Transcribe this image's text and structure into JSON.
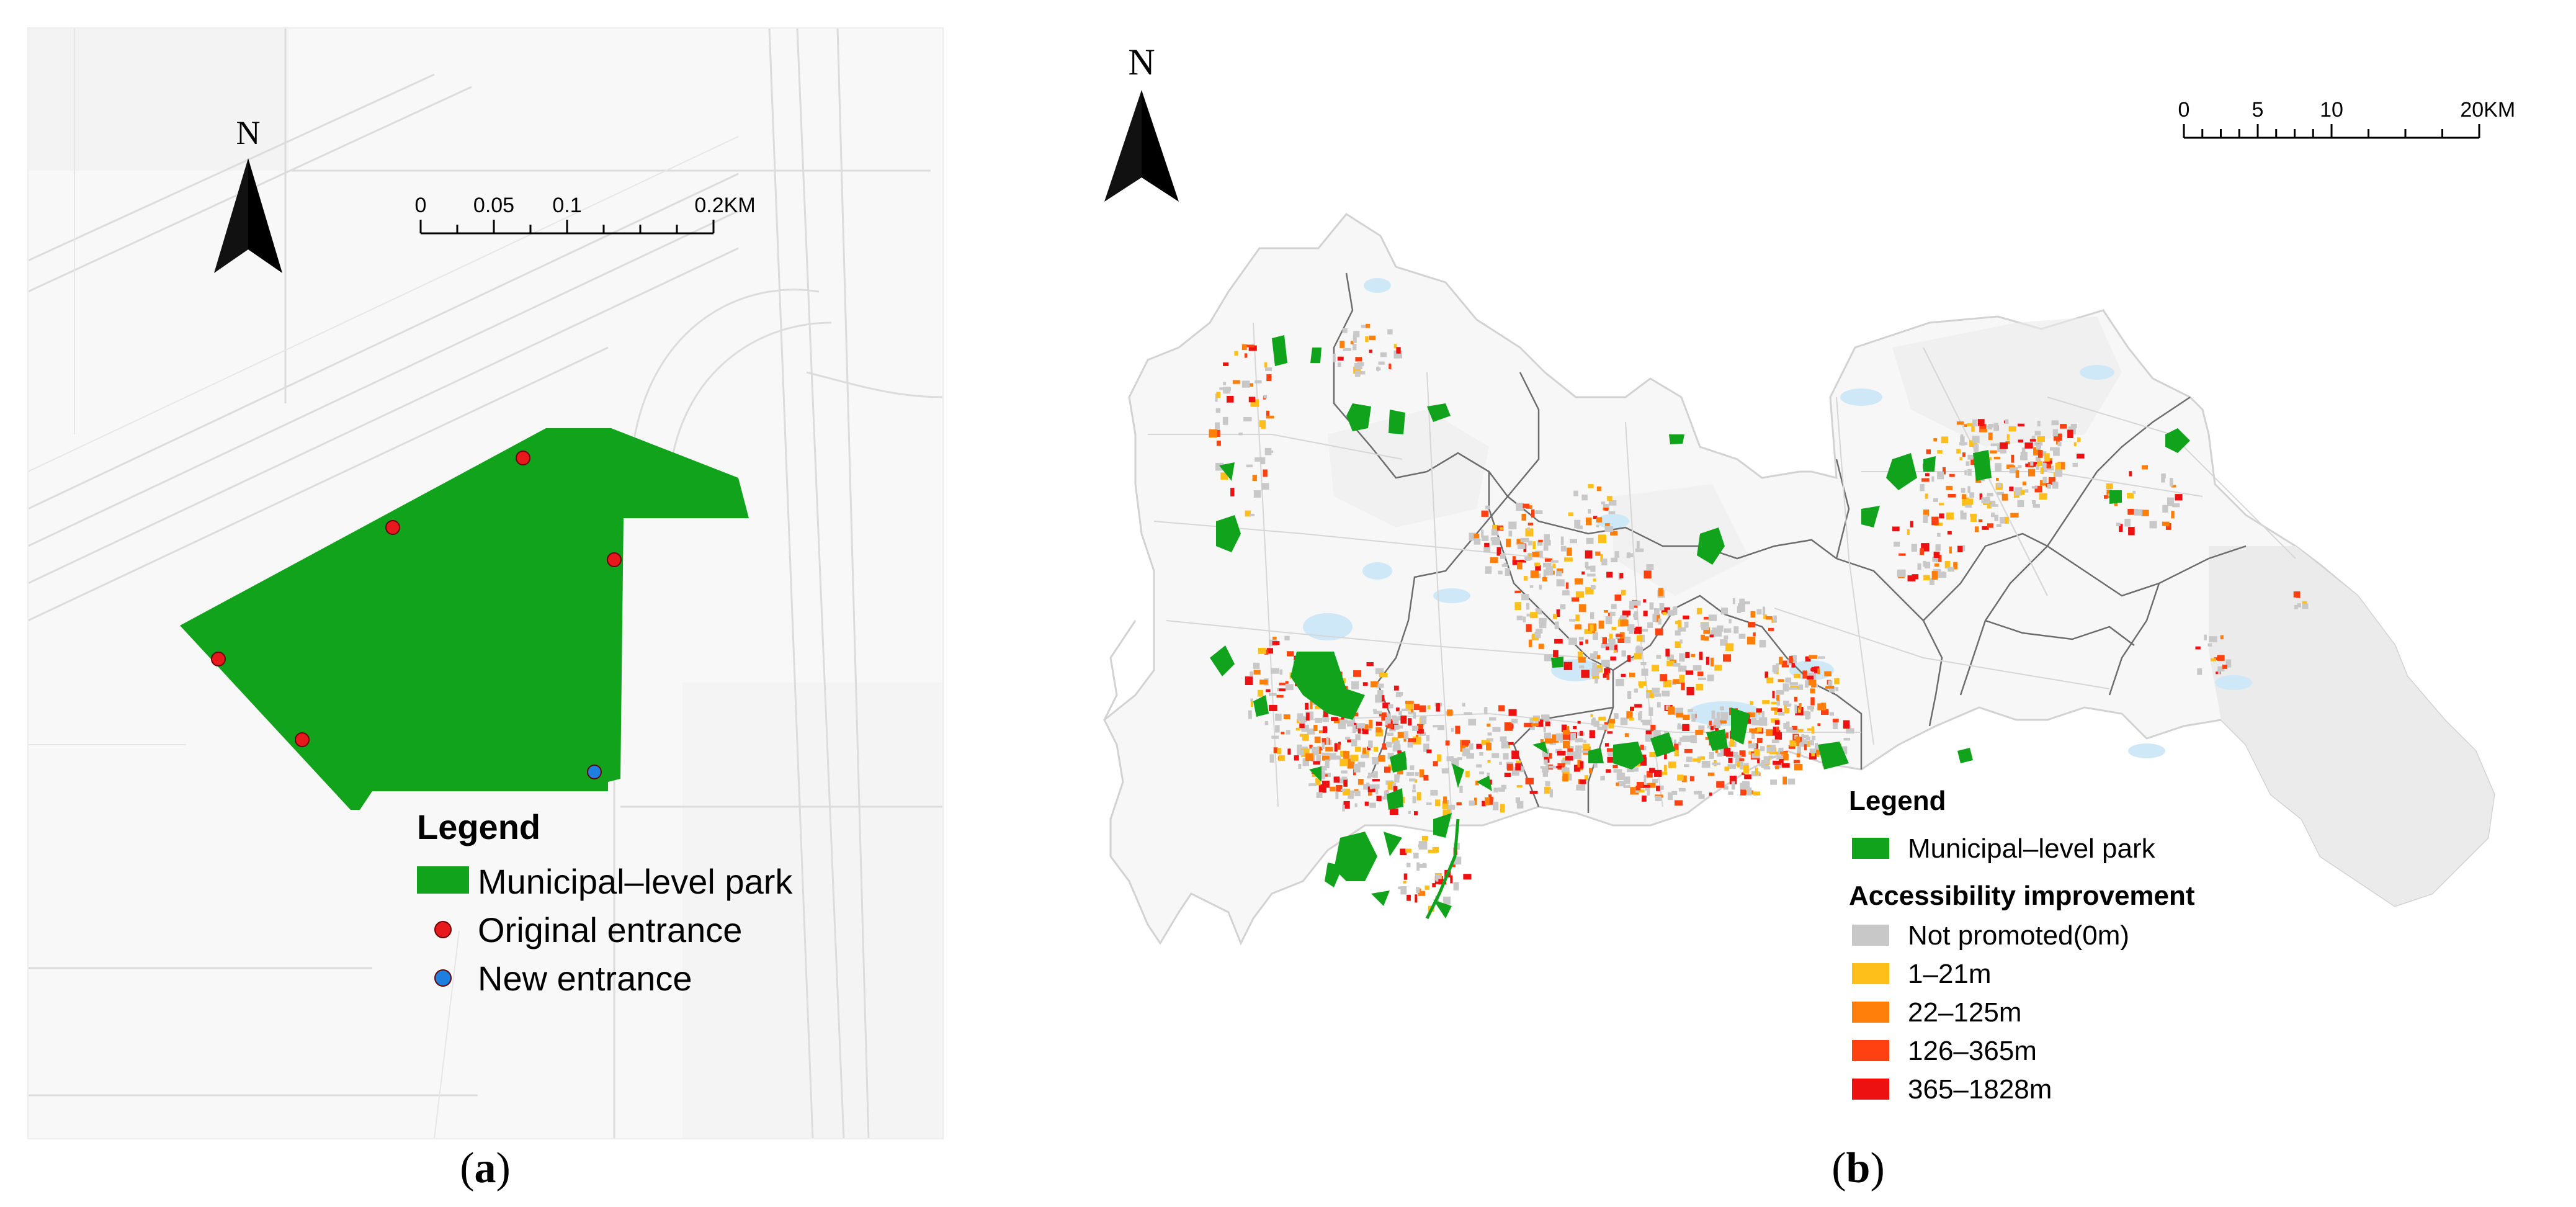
{
  "panel_a": {
    "north_label": "N",
    "scale_bar": {
      "ticks": [
        "0",
        "0.05",
        "0.1",
        "0.2KM"
      ]
    },
    "legend": {
      "title": "Legend",
      "items": [
        {
          "label": "Municipal–level park",
          "symbol": "rect",
          "color": "#11a31b"
        },
        {
          "label": "Original entrance",
          "symbol": "circle",
          "color": "#e8191c"
        },
        {
          "label": "New entrance",
          "symbol": "circle",
          "color": "#1f7fe0"
        }
      ]
    },
    "caption": {
      "open": "(",
      "letter": "a",
      "close": ")"
    }
  },
  "panel_b": {
    "north_label": "N",
    "scale_bar": {
      "ticks": [
        "0",
        "5",
        "10",
        "20KM"
      ]
    },
    "legend": {
      "title": "Legend",
      "park_item": {
        "label": "Municipal–level park",
        "color": "#11a31b"
      },
      "subtitle": "Accessibility improvement",
      "classes": [
        {
          "label": "Not promoted(0m)",
          "color": "#c8c8c8"
        },
        {
          "label": "1–21m",
          "color": "#ffbf1a"
        },
        {
          "label": "22–125m",
          "color": "#ff7f0a"
        },
        {
          "label": "126–365m",
          "color": "#ff4010"
        },
        {
          "label": "365–1828m",
          "color": "#ee1111"
        }
      ]
    },
    "caption": {
      "open": "(",
      "letter": "b",
      "close": ")"
    }
  }
}
